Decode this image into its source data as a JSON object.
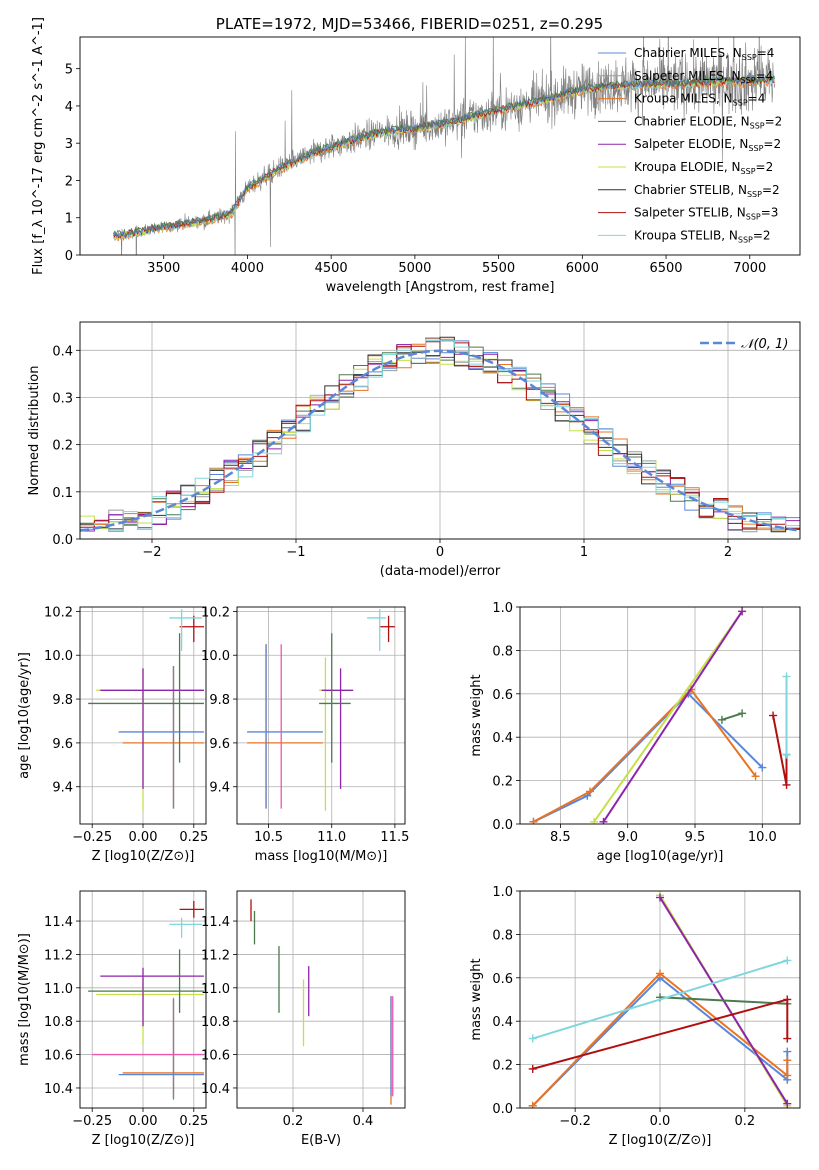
{
  "title": "PLATE=1972, MJD=53466, FIBERID=0251, z=0.295",
  "colors": {
    "chabrier_miles": "#5b87d8",
    "salpeter_miles": "#9a9a9a",
    "kroupa_miles": "#e87424",
    "chabrier_elodie": "#4c7a4c",
    "salpeter_elodie": "#8e24aa",
    "kroupa_elodie": "#c6e04c",
    "chabrier_stelib": "#333333",
    "salpeter_stelib": "#b01010",
    "kroupa_stelib": "#7fd6dc",
    "pink": "#ee55aa",
    "data": "#808080"
  },
  "chart_data": [
    {
      "id": "spectrum",
      "type": "line",
      "title": "PLATE=1972, MJD=53466, FIBERID=0251, z=0.295",
      "xlabel": "wavelength [Angstrom, rest frame]",
      "ylabel": "Flux [f_λ 10^-17 erg cm^-2 s^-1 A^-1]",
      "xlim": [
        3000,
        7300
      ],
      "ylim": [
        0,
        5.85
      ],
      "xticks": [
        3500,
        4000,
        4500,
        5000,
        5500,
        6000,
        6500,
        7000
      ],
      "yticks": [
        0,
        1,
        2,
        3,
        4,
        5
      ],
      "x_range_data": [
        3200,
        7150
      ],
      "continuum": {
        "x": [
          3200,
          3500,
          3700,
          3900,
          4000,
          4200,
          4400,
          4600,
          4800,
          5000,
          5200,
          5500,
          5800,
          6000,
          6200,
          6400,
          6600,
          6800,
          7100
        ],
        "y": [
          0.5,
          0.75,
          0.9,
          1.1,
          1.8,
          2.35,
          2.75,
          3.05,
          3.3,
          3.4,
          3.55,
          3.9,
          4.2,
          4.45,
          4.55,
          4.6,
          4.6,
          4.65,
          4.7
        ]
      },
      "legend": [
        {
          "label": "Chabrier MILES, N",
          "sub": "SSP",
          "n": "=4",
          "color": "chabrier_miles"
        },
        {
          "label": "Salpeter MILES, N",
          "sub": "SSP",
          "n": "=4",
          "color": "salpeter_miles"
        },
        {
          "label": "Kroupa MILES, N",
          "sub": "SSP",
          "n": "=4",
          "color": "kroupa_miles"
        },
        {
          "label": "Chabrier ELODIE, N",
          "sub": "SSP",
          "n": "=2",
          "color": "chabrier_elodie"
        },
        {
          "label": "Salpeter ELODIE, N",
          "sub": "SSP",
          "n": "=2",
          "color": "salpeter_elodie"
        },
        {
          "label": "Kroupa ELODIE, N",
          "sub": "SSP",
          "n": "=2",
          "color": "kroupa_elodie"
        },
        {
          "label": "Chabrier STELIB, N",
          "sub": "SSP",
          "n": "=2",
          "color": "chabrier_stelib"
        },
        {
          "label": "Salpeter STELIB, N",
          "sub": "SSP",
          "n": "=3",
          "color": "salpeter_stelib"
        },
        {
          "label": "Kroupa STELIB, N",
          "sub": "SSP",
          "n": "=2",
          "color": "kroupa_stelib"
        }
      ]
    },
    {
      "id": "residuals",
      "type": "bar",
      "xlabel": "(data-model)/error",
      "ylabel": "Normed distribution",
      "xlim": [
        -2.5,
        2.5
      ],
      "ylim": [
        0,
        0.46
      ],
      "xticks": [
        -2,
        -1,
        0,
        1,
        2
      ],
      "xticklabels": [
        "−2",
        "−1",
        "0",
        "1",
        "2"
      ],
      "yticks": [
        0.0,
        0.1,
        0.2,
        0.3,
        0.4
      ],
      "legend": "𝒩(0, 1)",
      "gaussian": {
        "mean": 0,
        "sigma": 1,
        "color": "chabrier_miles"
      },
      "bin_width": 0.1,
      "bins_start": -2.5,
      "series_colors": [
        "chabrier_miles",
        "salpeter_miles",
        "kroupa_miles",
        "chabrier_elodie",
        "salpeter_elodie",
        "kroupa_elodie",
        "chabrier_stelib",
        "salpeter_stelib",
        "kroupa_stelib"
      ]
    },
    {
      "id": "age_vs_Z",
      "type": "scatter",
      "xlabel": "Z [log10(Z/Z⊙)]",
      "ylabel": "age  [log10(age/yr)]",
      "xlim": [
        -0.31,
        0.31
      ],
      "ylim": [
        9.23,
        10.22
      ],
      "xticks": [
        -0.25,
        0.0,
        0.25
      ],
      "xticklabels": [
        "−0.25",
        "0.00",
        "0.25"
      ],
      "yticks": [
        9.4,
        9.6,
        9.8,
        10.0,
        10.2
      ],
      "points": [
        {
          "x": 0.15,
          "y": 9.6,
          "xerr": [
            0.25,
            0.15
          ],
          "yerr": [
            0.3,
            0.35
          ],
          "color": "kroupa_miles"
        },
        {
          "x": 0.15,
          "y": 9.65,
          "xerr": [
            0.27,
            0.15
          ],
          "yerr": [
            0.35,
            0.3
          ],
          "color": "chabrier_miles"
        },
        {
          "x": 0.0,
          "y": 9.84,
          "xerr": [
            0.23,
            0.3
          ],
          "yerr": [
            0.55,
            0.1
          ],
          "color": "kroupa_elodie"
        },
        {
          "x": 0.0,
          "y": 9.84,
          "xerr": [
            0.21,
            0.3
          ],
          "yerr": [
            0.45,
            0.1
          ],
          "color": "salpeter_elodie"
        },
        {
          "x": 0.18,
          "y": 9.78,
          "xerr": [
            0.45,
            0.12
          ],
          "yerr": [
            0.27,
            0.32
          ],
          "color": "chabrier_elodie"
        },
        {
          "x": 0.25,
          "y": 10.13,
          "xerr": [
            0.07,
            0.05
          ],
          "yerr": [
            0.07,
            0.05
          ],
          "color": "salpeter_stelib"
        },
        {
          "x": 0.19,
          "y": 10.17,
          "xerr": [
            0.06,
            0.1
          ],
          "yerr": [
            0.15,
            0.04
          ],
          "color": "kroupa_stelib"
        }
      ]
    },
    {
      "id": "age_vs_mass",
      "type": "scatter",
      "xlabel": "mass [log10(M/M⊙)]",
      "ylabel": "",
      "xlim": [
        10.25,
        11.58
      ],
      "ylim": [
        9.23,
        10.22
      ],
      "xticks": [
        10.5,
        11.0,
        11.5
      ],
      "xticklabels": [
        "10.5",
        "11.0",
        "11.5"
      ],
      "yticks": [
        9.4,
        9.6,
        9.8,
        10.0,
        10.2
      ],
      "points": [
        {
          "x": 10.48,
          "y": 9.6,
          "xerr": [
            0.15,
            0.45
          ],
          "yerr": [
            0.3,
            0.45
          ],
          "color": "kroupa_miles"
        },
        {
          "x": 10.48,
          "y": 9.65,
          "xerr": [
            0.15,
            0.45
          ],
          "yerr": [
            0.35,
            0.4
          ],
          "color": "chabrier_miles"
        },
        {
          "x": 10.6,
          "y": 9.6,
          "xerr": [
            0.0,
            0.0
          ],
          "yerr": [
            0.3,
            0.45
          ],
          "color": "pink"
        },
        {
          "x": 10.95,
          "y": 9.84,
          "xerr": [
            0.05,
            0.05
          ],
          "yerr": [
            0.55,
            0.15
          ],
          "color": "kroupa_elodie"
        },
        {
          "x": 11.07,
          "y": 9.84,
          "xerr": [
            0.15,
            0.1
          ],
          "yerr": [
            0.45,
            0.1
          ],
          "color": "salpeter_elodie"
        },
        {
          "x": 11.0,
          "y": 9.78,
          "xerr": [
            0.1,
            0.15
          ],
          "yerr": [
            0.27,
            0.32
          ],
          "color": "chabrier_elodie"
        },
        {
          "x": 11.45,
          "y": 10.13,
          "xerr": [
            0.07,
            0.05
          ],
          "yerr": [
            0.07,
            0.05
          ],
          "color": "salpeter_stelib"
        },
        {
          "x": 11.38,
          "y": 10.17,
          "xerr": [
            0.1,
            0.05
          ],
          "yerr": [
            0.15,
            0.04
          ],
          "color": "kroupa_stelib"
        }
      ]
    },
    {
      "id": "weight_vs_age",
      "type": "line",
      "xlabel": "age  [log10(age/yr)]",
      "ylabel": "mass weight",
      "xlim": [
        8.2,
        10.28
      ],
      "ylim": [
        0,
        1.0
      ],
      "xticks": [
        8.5,
        9.0,
        9.5,
        10.0
      ],
      "xticklabels": [
        "8.5",
        "9.0",
        "9.5",
        "10.0"
      ],
      "yticks": [
        0.0,
        0.2,
        0.4,
        0.6,
        0.8,
        1.0
      ],
      "series": [
        {
          "color": "chabrier_miles",
          "x": [
            8.3,
            8.7,
            9.45,
            10.0
          ],
          "y": [
            0.01,
            0.13,
            0.6,
            0.26
          ]
        },
        {
          "color": "kroupa_miles",
          "x": [
            8.3,
            8.72,
            9.47,
            9.95
          ],
          "y": [
            0.01,
            0.15,
            0.62,
            0.22
          ]
        },
        {
          "color": "kroupa_elodie",
          "x": [
            8.75,
            9.85
          ],
          "y": [
            0.01,
            0.98
          ]
        },
        {
          "color": "salpeter_elodie",
          "x": [
            8.82,
            9.85
          ],
          "y": [
            0.01,
            0.98
          ]
        },
        {
          "color": "chabrier_elodie",
          "x": [
            9.7,
            9.85
          ],
          "y": [
            0.48,
            0.51
          ]
        },
        {
          "color": "salpeter_stelib",
          "x": [
            10.08,
            10.18,
            10.18
          ],
          "y": [
            0.5,
            0.18,
            0.32
          ]
        },
        {
          "color": "kroupa_stelib",
          "x": [
            10.18,
            10.18
          ],
          "y": [
            0.32,
            0.68
          ]
        }
      ]
    },
    {
      "id": "mass_vs_Z",
      "type": "scatter",
      "xlabel": "Z [log10(Z/Z⊙)]",
      "ylabel": "mass [log10(M/M⊙)]",
      "xlim": [
        -0.31,
        0.31
      ],
      "ylim": [
        10.28,
        11.58
      ],
      "xticks": [
        -0.25,
        0.0,
        0.25
      ],
      "xticklabels": [
        "−0.25",
        "0.00",
        "0.25"
      ],
      "yticks": [
        10.4,
        10.6,
        10.8,
        11.0,
        11.2,
        11.4
      ],
      "points": [
        {
          "x": 0.15,
          "y": 10.49,
          "xerr": [
            0.25,
            0.15
          ],
          "yerr": [
            0.15,
            0.45
          ],
          "color": "kroupa_miles"
        },
        {
          "x": 0.15,
          "y": 10.48,
          "xerr": [
            0.27,
            0.15
          ],
          "yerr": [
            0.15,
            0.45
          ],
          "color": "chabrier_miles"
        },
        {
          "x": 0.0,
          "y": 10.6,
          "xerr": [
            0.25,
            0.3
          ],
          "yerr": [
            0.0,
            0.0
          ],
          "color": "pink"
        },
        {
          "x": 0.0,
          "y": 10.96,
          "xerr": [
            0.23,
            0.3
          ],
          "yerr": [
            0.3,
            0.1
          ],
          "color": "kroupa_elodie"
        },
        {
          "x": 0.0,
          "y": 11.07,
          "xerr": [
            0.21,
            0.3
          ],
          "yerr": [
            0.3,
            0.05
          ],
          "color": "salpeter_elodie"
        },
        {
          "x": 0.18,
          "y": 10.98,
          "xerr": [
            0.45,
            0.12
          ],
          "yerr": [
            0.13,
            0.25
          ],
          "color": "chabrier_elodie"
        },
        {
          "x": 0.25,
          "y": 11.47,
          "xerr": [
            0.07,
            0.05
          ],
          "yerr": [
            0.05,
            0.05
          ],
          "color": "salpeter_stelib"
        },
        {
          "x": 0.19,
          "y": 11.38,
          "xerr": [
            0.06,
            0.1
          ],
          "yerr": [
            0.08,
            0.04
          ],
          "color": "kroupa_stelib"
        }
      ]
    },
    {
      "id": "mass_vs_ebv",
      "type": "scatter",
      "xlabel": "E(B-V)",
      "ylabel": "",
      "xlim": [
        0.04,
        0.52
      ],
      "ylim": [
        10.28,
        11.58
      ],
      "xticks": [
        0.2,
        0.4
      ],
      "xticklabels": [
        "0.2",
        "0.4"
      ],
      "yticks": [
        10.4,
        10.6,
        10.8,
        11.0,
        11.2,
        11.4
      ],
      "points": [
        {
          "x": 0.48,
          "y": 10.6,
          "yerr": [
            0.3,
            0.35
          ],
          "color": "kroupa_miles"
        },
        {
          "x": 0.48,
          "y": 10.55,
          "yerr": [
            0.2,
            0.4
          ],
          "color": "chabrier_miles"
        },
        {
          "x": 0.485,
          "y": 10.6,
          "yerr": [
            0.25,
            0.35
          ],
          "color": "pink"
        },
        {
          "x": 0.23,
          "y": 10.85,
          "yerr": [
            0.2,
            0.2
          ],
          "color": "kroupa_elodie"
        },
        {
          "x": 0.245,
          "y": 10.98,
          "yerr": [
            0.15,
            0.15
          ],
          "color": "salpeter_elodie"
        },
        {
          "x": 0.16,
          "y": 11.05,
          "yerr": [
            0.2,
            0.2
          ],
          "color": "chabrier_elodie"
        },
        {
          "x": 0.08,
          "y": 11.45,
          "yerr": [
            0.05,
            0.08
          ],
          "color": "salpeter_stelib"
        },
        {
          "x": 0.09,
          "y": 11.36,
          "yerr": [
            0.1,
            0.1
          ],
          "color": "chabrier_elodie"
        }
      ]
    },
    {
      "id": "weight_vs_Z",
      "type": "line",
      "xlabel": "Z [log10(Z/Z⊙)]",
      "ylabel": "mass weight",
      "xlim": [
        -0.33,
        0.33
      ],
      "ylim": [
        0,
        1.0
      ],
      "xticks": [
        -0.2,
        0.0,
        0.2
      ],
      "xticklabels": [
        "−0.2",
        "0.0",
        "0.2"
      ],
      "yticks": [
        0.0,
        0.2,
        0.4,
        0.6,
        0.8,
        1.0
      ],
      "series": [
        {
          "color": "chabrier_miles",
          "x": [
            -0.3,
            0.0,
            0.3,
            0.3
          ],
          "y": [
            0.01,
            0.6,
            0.13,
            0.26
          ]
        },
        {
          "color": "kroupa_miles",
          "x": [
            -0.3,
            0.0,
            0.3,
            0.3
          ],
          "y": [
            0.01,
            0.62,
            0.15,
            0.22
          ]
        },
        {
          "color": "kroupa_elodie",
          "x": [
            0.0,
            0.3
          ],
          "y": [
            0.98,
            0.01
          ]
        },
        {
          "color": "salpeter_elodie",
          "x": [
            0.0,
            0.3
          ],
          "y": [
            0.97,
            0.02
          ]
        },
        {
          "color": "chabrier_elodie",
          "x": [
            0.0,
            0.3
          ],
          "y": [
            0.51,
            0.48
          ]
        },
        {
          "color": "salpeter_stelib",
          "x": [
            -0.3,
            0.3,
            0.3
          ],
          "y": [
            0.18,
            0.5,
            0.32
          ]
        },
        {
          "color": "kroupa_stelib",
          "x": [
            -0.3,
            0.3
          ],
          "y": [
            0.32,
            0.68
          ]
        }
      ]
    }
  ]
}
